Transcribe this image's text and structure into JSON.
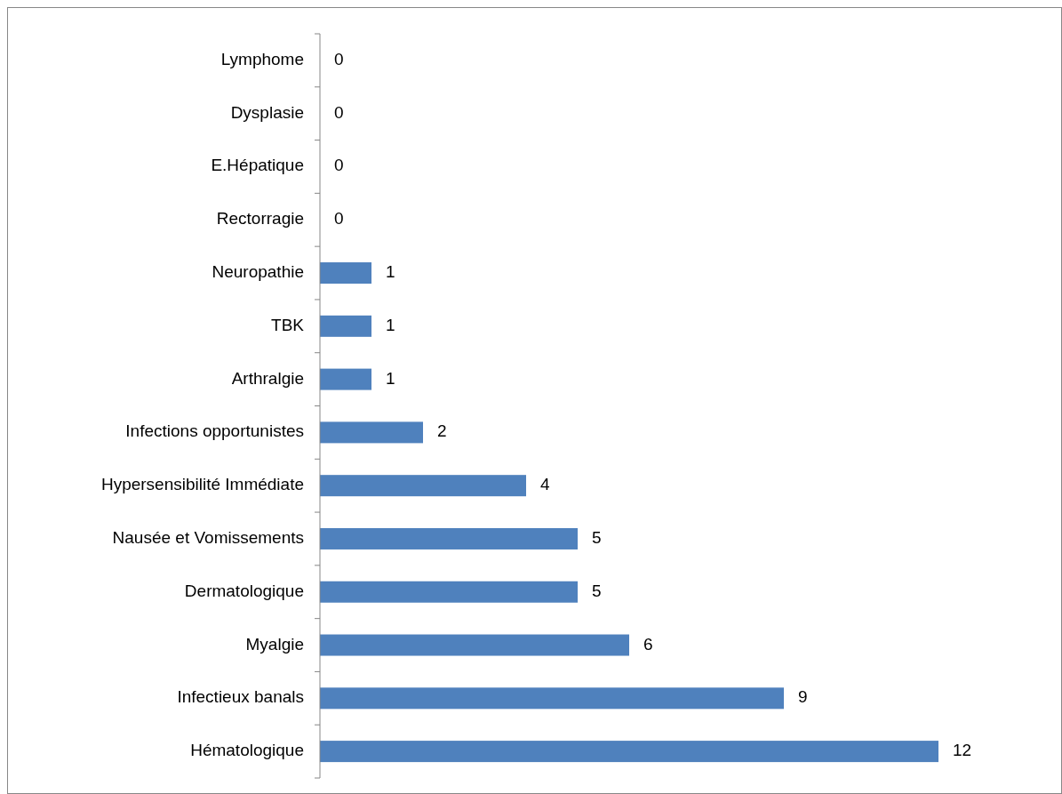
{
  "chart_data": {
    "type": "bar",
    "orientation": "horizontal",
    "categories": [
      "Lymphome",
      "Dysplasie",
      "E.Hépatique",
      "Rectorragie",
      "Neuropathie",
      "TBK",
      "Arthralgie",
      "Infections opportunistes",
      "Hypersensibilité Immédiate",
      "Nausée et Vomissements",
      "Dermatologique",
      "Myalgie",
      "Infectieux banals",
      "Hématologique"
    ],
    "values": [
      0,
      0,
      0,
      0,
      1,
      1,
      1,
      2,
      4,
      5,
      5,
      6,
      9,
      12
    ],
    "color": "#4f81bd",
    "data_labels": true
  }
}
